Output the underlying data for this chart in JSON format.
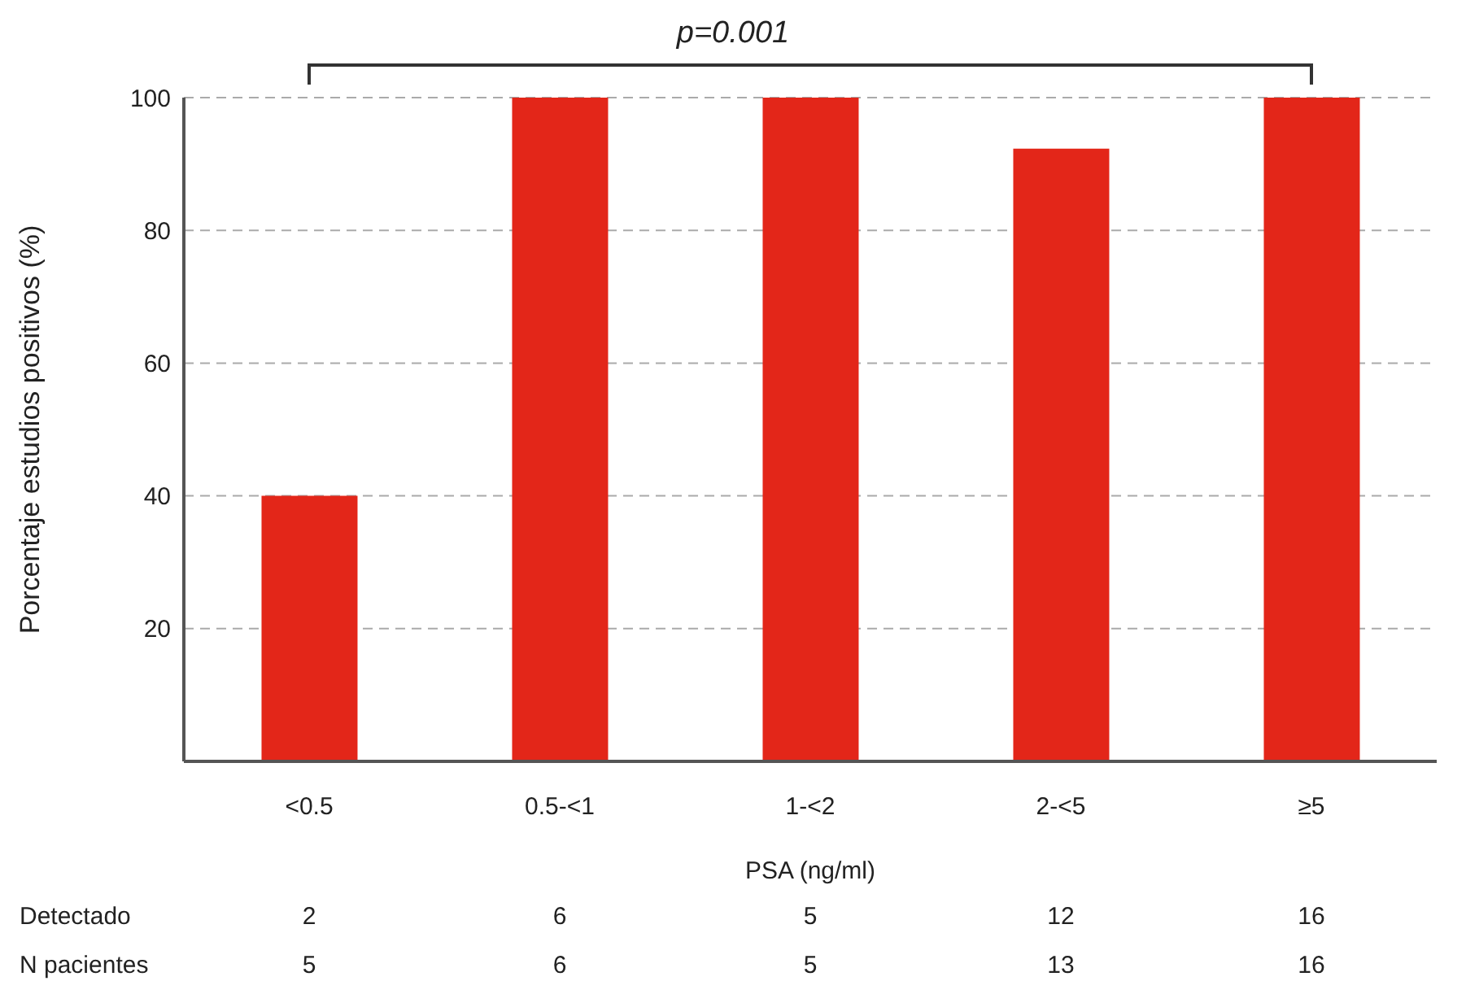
{
  "chart_data": {
    "type": "bar",
    "ylabel": "Porcentaje estudios positivos (%)",
    "xlabel": "PSA (ng/ml)",
    "categories": [
      "<0.5",
      "0.5-<1",
      "1-<2",
      "2-<5",
      "≥5"
    ],
    "values": [
      40,
      100,
      100,
      92.3,
      100
    ],
    "color": "#e32619",
    "ylim": [
      0,
      100
    ],
    "yticks": [
      20,
      40,
      60,
      80,
      100
    ],
    "grid": "y",
    "annotations": [
      "p=0.001",
      "Detectado",
      "2",
      "6",
      "5",
      "12",
      "16",
      "N pacientes",
      "5",
      "6",
      "5",
      "13",
      "16"
    ]
  }
}
